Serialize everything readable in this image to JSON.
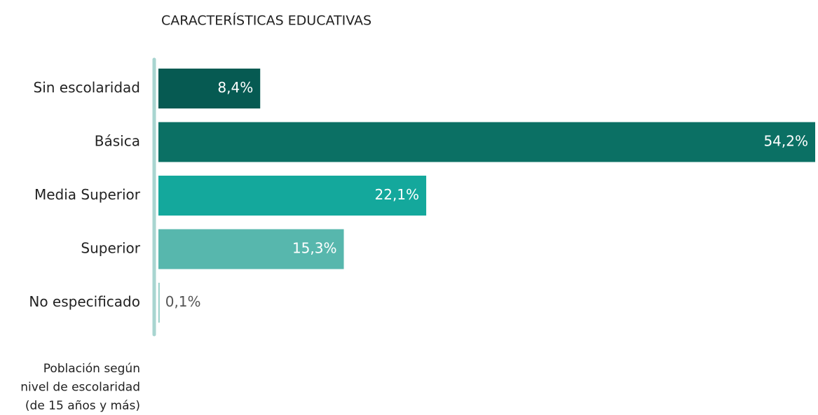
{
  "chart_data": {
    "type": "bar",
    "orientation": "horizontal",
    "title": "CARACTERÍSTICAS EDUCATIVAS",
    "categories": [
      "Sin escolaridad",
      "Básica",
      "Media Superior",
      "Superior",
      "No especificado"
    ],
    "values": [
      8.4,
      54.2,
      22.1,
      15.3,
      0.1
    ],
    "value_labels": [
      "8,4%",
      "54,2%",
      "22,1%",
      "15,3%",
      "0,1%"
    ],
    "colors": [
      "#065a52",
      "#0b7064",
      "#14a89c",
      "#57b7ad",
      "#8cc9c2"
    ],
    "note": [
      "Población según",
      "nivel de escolaridad",
      "(de 15 años y más)"
    ]
  }
}
